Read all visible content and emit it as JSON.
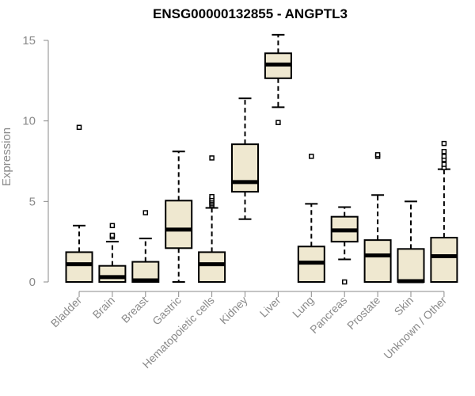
{
  "chart_data": {
    "type": "boxplot",
    "title": "ENSG00000132855 - ANGPTL3",
    "xlabel": "",
    "ylabel": "Expression",
    "ylim": [
      0,
      15.5
    ],
    "yticks": [
      0,
      5,
      10,
      15
    ],
    "grid": false,
    "categories": [
      "Bladder",
      "Brain",
      "Breast",
      "Gastric",
      "Hematopoietic cells",
      "Kidney",
      "Liver",
      "Lung",
      "Pancreas",
      "Prostate",
      "Skin",
      "Unknown / Other"
    ],
    "boxes": [
      {
        "category": "Bladder",
        "whisker_low": 0,
        "q1": 0,
        "median": 1.1,
        "q3": 1.85,
        "whisker_high": 3.5,
        "outliers": [
          9.6
        ]
      },
      {
        "category": "Brain",
        "whisker_low": 0,
        "q1": 0,
        "median": 0.3,
        "q3": 1.0,
        "whisker_high": 2.5,
        "outliers": [
          2.8,
          2.9,
          3.5
        ]
      },
      {
        "category": "Breast",
        "whisker_low": 0,
        "q1": 0,
        "median": 0.1,
        "q3": 1.25,
        "whisker_high": 2.7,
        "outliers": [
          4.3
        ]
      },
      {
        "category": "Gastric",
        "whisker_low": 0,
        "q1": 2.1,
        "median": 3.25,
        "q3": 5.05,
        "whisker_high": 8.1,
        "outliers": []
      },
      {
        "category": "Hematopoietic cells",
        "whisker_low": 0,
        "q1": 0,
        "median": 1.1,
        "q3": 1.85,
        "whisker_high": 4.6,
        "outliers": [
          4.75,
          4.85,
          4.95,
          5.05,
          5.15,
          5.3,
          7.7
        ]
      },
      {
        "category": "Kidney",
        "whisker_low": 3.9,
        "q1": 5.6,
        "median": 6.2,
        "q3": 8.55,
        "whisker_high": 11.4,
        "outliers": []
      },
      {
        "category": "Liver",
        "whisker_low": 10.85,
        "q1": 12.65,
        "median": 13.5,
        "q3": 14.2,
        "whisker_high": 15.35,
        "outliers": [
          9.9
        ]
      },
      {
        "category": "Lung",
        "whisker_low": 0,
        "q1": 0,
        "median": 1.2,
        "q3": 2.2,
        "whisker_high": 4.85,
        "outliers": [
          7.8
        ]
      },
      {
        "category": "Pancreas",
        "whisker_low": 1.4,
        "q1": 2.5,
        "median": 3.2,
        "q3": 4.05,
        "whisker_high": 4.65,
        "outliers": [
          0
        ]
      },
      {
        "category": "Prostate",
        "whisker_low": 0,
        "q1": 0,
        "median": 1.65,
        "q3": 2.6,
        "whisker_high": 5.4,
        "outliers": [
          7.8,
          7.9
        ]
      },
      {
        "category": "Skin",
        "whisker_low": 0,
        "q1": 0,
        "median": 0.05,
        "q3": 2.05,
        "whisker_high": 5.0,
        "outliers": []
      },
      {
        "category": "Unknown / Other",
        "whisker_low": 0,
        "q1": 0,
        "median": 1.6,
        "q3": 2.75,
        "whisker_high": 7.0,
        "outliers": [
          7.1,
          7.3,
          7.6,
          7.8,
          8.1,
          8.6
        ]
      }
    ],
    "colors": {
      "box_fill": "#efe8d0",
      "box_stroke": "#000000",
      "axis": "#8a8a8a"
    }
  }
}
